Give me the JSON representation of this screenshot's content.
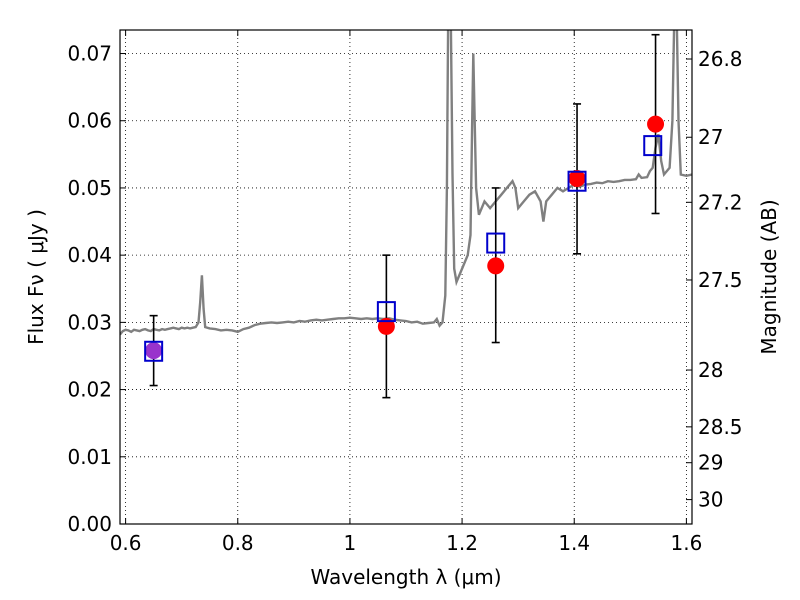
{
  "chart_data": {
    "type": "scatter",
    "xlabel": "Wavelength  λ (μm)",
    "ylabel": "Flux  Fν  ( μJy )",
    "y2label": "Magnitude (AB)",
    "xlim": [
      0.59,
      1.61
    ],
    "ylim": [
      0.0,
      0.0735
    ],
    "x_ticks": [
      0.6,
      0.8,
      1.0,
      1.2,
      1.4,
      1.6
    ],
    "x_tick_labels": [
      "0.6",
      "0.8",
      "1",
      "1.2",
      "1.4",
      "1.6"
    ],
    "y_ticks": [
      0.0,
      0.01,
      0.02,
      0.03,
      0.04,
      0.05,
      0.06,
      0.07
    ],
    "y_tick_labels": [
      "0.00",
      "0.01",
      "0.02",
      "0.03",
      "0.04",
      "0.05",
      "0.06",
      "0.07"
    ],
    "mag_ticks": [
      26.8,
      27.0,
      27.2,
      27.5,
      28.0,
      28.5,
      29.0,
      30.0
    ],
    "mag_tick_labels": [
      "26.8",
      "27",
      "27.2",
      "27.5",
      "28",
      "28.5",
      "29",
      "30"
    ],
    "grid": true,
    "colors": {
      "spectrum": "#808080",
      "observed": "#ff0000",
      "model": "#0000cc",
      "errorbar": "#000000",
      "overlap": "#9933cc"
    },
    "series": [
      {
        "kind": "model_photometry",
        "marker": "open-square",
        "x": [
          0.65,
          1.065,
          1.26,
          1.405,
          1.54
        ],
        "y": [
          0.0257,
          0.0316,
          0.0418,
          0.051,
          0.0563
        ]
      },
      {
        "kind": "observed_photometry",
        "marker": "filled-circle",
        "x": [
          0.65,
          1.065,
          1.26,
          1.405,
          1.545
        ],
        "y": [
          0.0258,
          0.0294,
          0.0384,
          0.0514,
          0.0595
        ],
        "yerr_low": [
          0.0206,
          0.0188,
          0.027,
          0.0402,
          0.0462
        ],
        "yerr_high": [
          0.031,
          0.04,
          0.05,
          0.0625,
          0.0728
        ]
      },
      {
        "kind": "spectrum",
        "line": "solid",
        "points": [
          [
            0.59,
            0.0282
          ],
          [
            0.595,
            0.0287
          ],
          [
            0.6,
            0.0289
          ],
          [
            0.605,
            0.0288
          ],
          [
            0.61,
            0.0286
          ],
          [
            0.615,
            0.0289
          ],
          [
            0.62,
            0.0288
          ],
          [
            0.625,
            0.0287
          ],
          [
            0.63,
            0.0289
          ],
          [
            0.635,
            0.029
          ],
          [
            0.64,
            0.0288
          ],
          [
            0.645,
            0.0287
          ],
          [
            0.65,
            0.029
          ],
          [
            0.655,
            0.0289
          ],
          [
            0.66,
            0.0288
          ],
          [
            0.665,
            0.029
          ],
          [
            0.67,
            0.0289
          ],
          [
            0.675,
            0.029
          ],
          [
            0.68,
            0.0291
          ],
          [
            0.685,
            0.0292
          ],
          [
            0.69,
            0.0291
          ],
          [
            0.695,
            0.029
          ],
          [
            0.7,
            0.0292
          ],
          [
            0.705,
            0.0291
          ],
          [
            0.71,
            0.0292
          ],
          [
            0.715,
            0.0291
          ],
          [
            0.72,
            0.0292
          ],
          [
            0.725,
            0.0293
          ],
          [
            0.73,
            0.03
          ],
          [
            0.733,
            0.033
          ],
          [
            0.736,
            0.037
          ],
          [
            0.739,
            0.032
          ],
          [
            0.742,
            0.0293
          ],
          [
            0.75,
            0.0291
          ],
          [
            0.76,
            0.029
          ],
          [
            0.77,
            0.0288
          ],
          [
            0.78,
            0.0289
          ],
          [
            0.79,
            0.0288
          ],
          [
            0.8,
            0.0286
          ],
          [
            0.81,
            0.029
          ],
          [
            0.82,
            0.0292
          ],
          [
            0.83,
            0.0296
          ],
          [
            0.84,
            0.0298
          ],
          [
            0.85,
            0.0299
          ],
          [
            0.86,
            0.03
          ],
          [
            0.87,
            0.0299
          ],
          [
            0.88,
            0.03
          ],
          [
            0.89,
            0.0301
          ],
          [
            0.9,
            0.03
          ],
          [
            0.91,
            0.0302
          ],
          [
            0.92,
            0.0301
          ],
          [
            0.93,
            0.0303
          ],
          [
            0.94,
            0.0304
          ],
          [
            0.95,
            0.0303
          ],
          [
            0.96,
            0.0304
          ],
          [
            0.97,
            0.0305
          ],
          [
            0.98,
            0.0306
          ],
          [
            0.99,
            0.0306
          ],
          [
            1.0,
            0.0307
          ],
          [
            1.01,
            0.0306
          ],
          [
            1.02,
            0.0305
          ],
          [
            1.03,
            0.0306
          ],
          [
            1.04,
            0.0305
          ],
          [
            1.05,
            0.0306
          ],
          [
            1.06,
            0.0305
          ],
          [
            1.07,
            0.0306
          ],
          [
            1.08,
            0.0304
          ],
          [
            1.09,
            0.0303
          ],
          [
            1.1,
            0.0302
          ],
          [
            1.11,
            0.03
          ],
          [
            1.12,
            0.0301
          ],
          [
            1.13,
            0.0298
          ],
          [
            1.14,
            0.0299
          ],
          [
            1.15,
            0.03
          ],
          [
            1.155,
            0.0305
          ],
          [
            1.16,
            0.0295
          ],
          [
            1.165,
            0.03
          ],
          [
            1.17,
            0.034
          ],
          [
            1.173,
            0.05
          ],
          [
            1.175,
            0.074
          ],
          [
            1.18,
            0.074
          ],
          [
            1.183,
            0.052
          ],
          [
            1.186,
            0.038
          ],
          [
            1.19,
            0.036
          ],
          [
            1.2,
            0.038
          ],
          [
            1.21,
            0.04
          ],
          [
            1.215,
            0.043
          ],
          [
            1.218,
            0.06
          ],
          [
            1.22,
            0.07
          ],
          [
            1.222,
            0.062
          ],
          [
            1.225,
            0.05
          ],
          [
            1.23,
            0.046
          ],
          [
            1.24,
            0.048
          ],
          [
            1.25,
            0.047
          ],
          [
            1.26,
            0.048
          ],
          [
            1.27,
            0.049
          ],
          [
            1.28,
            0.05
          ],
          [
            1.29,
            0.051
          ],
          [
            1.295,
            0.05
          ],
          [
            1.3,
            0.047
          ],
          [
            1.31,
            0.048
          ],
          [
            1.32,
            0.049
          ],
          [
            1.33,
            0.0495
          ],
          [
            1.34,
            0.048
          ],
          [
            1.345,
            0.045
          ],
          [
            1.35,
            0.048
          ],
          [
            1.36,
            0.049
          ],
          [
            1.37,
            0.05
          ],
          [
            1.38,
            0.0495
          ],
          [
            1.39,
            0.05
          ],
          [
            1.4,
            0.0505
          ],
          [
            1.41,
            0.0502
          ],
          [
            1.42,
            0.0505
          ],
          [
            1.43,
            0.0506
          ],
          [
            1.44,
            0.0508
          ],
          [
            1.45,
            0.0507
          ],
          [
            1.46,
            0.051
          ],
          [
            1.47,
            0.0509
          ],
          [
            1.48,
            0.051
          ],
          [
            1.49,
            0.0512
          ],
          [
            1.5,
            0.0512
          ],
          [
            1.51,
            0.0513
          ],
          [
            1.515,
            0.052
          ],
          [
            1.52,
            0.0515
          ],
          [
            1.53,
            0.0516
          ],
          [
            1.535,
            0.0525
          ],
          [
            1.54,
            0.053
          ],
          [
            1.545,
            0.056
          ],
          [
            1.55,
            0.058
          ],
          [
            1.555,
            0.054
          ],
          [
            1.56,
            0.052
          ],
          [
            1.57,
            0.053
          ],
          [
            1.575,
            0.06
          ],
          [
            1.578,
            0.074
          ],
          [
            1.583,
            0.074
          ],
          [
            1.586,
            0.06
          ],
          [
            1.59,
            0.052
          ],
          [
            1.6,
            0.0518
          ],
          [
            1.61,
            0.052
          ]
        ]
      }
    ]
  }
}
